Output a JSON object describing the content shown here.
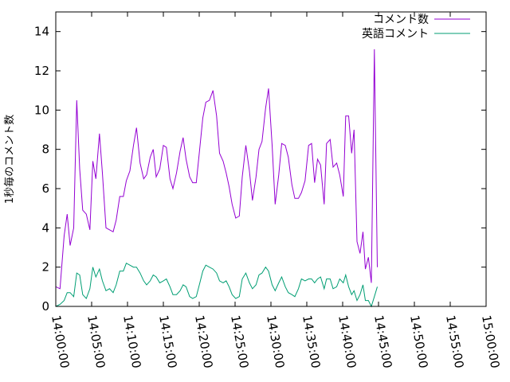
{
  "chart_data": {
    "type": "line",
    "title": "",
    "xlabel": "",
    "ylabel": "1秒毎のコメント数",
    "xlim": [
      "14:00:00",
      "15:00:00"
    ],
    "ylim": [
      0,
      15
    ],
    "x_ticks": [
      "14:00:00",
      "14:05:00",
      "14:10:00",
      "14:15:00",
      "14:20:00",
      "14:25:00",
      "14:30:00",
      "14:35:00",
      "14:40:00",
      "14:45:00",
      "14:50:00",
      "14:55:00",
      "15:00:00"
    ],
    "y_ticks": [
      "0",
      "2",
      "4",
      "6",
      "8",
      "10",
      "12",
      "14"
    ],
    "grid": false,
    "legend_position": "top-right",
    "series": [
      {
        "name": "コメント数",
        "color": "#9400d3",
        "points": [
          [
            "14:00:00",
            1.0
          ],
          [
            "14:00:35",
            0.9
          ],
          [
            "14:01:10",
            3.6
          ],
          [
            "14:01:35",
            4.7
          ],
          [
            "14:02:00",
            3.1
          ],
          [
            "14:02:30",
            4.0
          ],
          [
            "14:02:55",
            10.5
          ],
          [
            "14:03:20",
            7.0
          ],
          [
            "14:03:45",
            4.9
          ],
          [
            "14:04:15",
            4.7
          ],
          [
            "14:04:45",
            3.9
          ],
          [
            "14:05:10",
            7.4
          ],
          [
            "14:05:35",
            6.5
          ],
          [
            "14:06:05",
            8.8
          ],
          [
            "14:06:30",
            6.8
          ],
          [
            "14:07:00",
            4.0
          ],
          [
            "14:07:30",
            3.9
          ],
          [
            "14:08:00",
            3.8
          ],
          [
            "14:08:25",
            4.4
          ],
          [
            "14:08:55",
            5.6
          ],
          [
            "14:09:25",
            5.6
          ],
          [
            "14:09:50",
            6.4
          ],
          [
            "14:10:20",
            6.9
          ],
          [
            "14:10:50",
            8.2
          ],
          [
            "14:11:15",
            9.1
          ],
          [
            "14:11:45",
            7.3
          ],
          [
            "14:12:15",
            6.5
          ],
          [
            "14:12:40",
            6.7
          ],
          [
            "14:13:10",
            7.6
          ],
          [
            "14:13:35",
            8.0
          ],
          [
            "14:14:00",
            6.6
          ],
          [
            "14:14:30",
            7.0
          ],
          [
            "14:15:00",
            8.2
          ],
          [
            "14:15:25",
            8.1
          ],
          [
            "14:15:55",
            6.5
          ],
          [
            "14:16:20",
            6.0
          ],
          [
            "14:16:50",
            6.8
          ],
          [
            "14:17:20",
            7.9
          ],
          [
            "14:17:45",
            8.6
          ],
          [
            "14:18:10",
            7.5
          ],
          [
            "14:18:40",
            6.6
          ],
          [
            "14:19:05",
            6.3
          ],
          [
            "14:19:35",
            6.3
          ],
          [
            "14:20:05",
            8.1
          ],
          [
            "14:20:30",
            9.6
          ],
          [
            "14:20:55",
            10.4
          ],
          [
            "14:21:25",
            10.5
          ],
          [
            "14:21:55",
            11.0
          ],
          [
            "14:22:25",
            9.7
          ],
          [
            "14:22:50",
            7.8
          ],
          [
            "14:23:20",
            7.4
          ],
          [
            "14:23:45",
            6.8
          ],
          [
            "14:24:10",
            6.1
          ],
          [
            "14:24:35",
            5.2
          ],
          [
            "14:25:05",
            4.5
          ],
          [
            "14:25:35",
            4.6
          ],
          [
            "14:26:00",
            6.6
          ],
          [
            "14:26:30",
            8.2
          ],
          [
            "14:27:00",
            6.9
          ],
          [
            "14:27:25",
            5.4
          ],
          [
            "14:27:55",
            6.6
          ],
          [
            "14:28:20",
            8.0
          ],
          [
            "14:28:45",
            8.4
          ],
          [
            "14:29:15",
            10.1
          ],
          [
            "14:29:40",
            11.1
          ],
          [
            "14:30:10",
            8.2
          ],
          [
            "14:30:35",
            5.2
          ],
          [
            "14:31:05",
            6.7
          ],
          [
            "14:31:30",
            8.3
          ],
          [
            "14:32:00",
            8.2
          ],
          [
            "14:32:25",
            7.6
          ],
          [
            "14:32:55",
            6.2
          ],
          [
            "14:33:20",
            5.5
          ],
          [
            "14:33:50",
            5.5
          ],
          [
            "14:34:15",
            5.8
          ],
          [
            "14:34:45",
            6.4
          ],
          [
            "14:35:15",
            8.2
          ],
          [
            "14:35:40",
            8.3
          ],
          [
            "14:36:05",
            6.3
          ],
          [
            "14:36:30",
            7.5
          ],
          [
            "14:36:55",
            7.2
          ],
          [
            "14:37:25",
            5.2
          ],
          [
            "14:37:45",
            8.3
          ],
          [
            "14:38:15",
            8.5
          ],
          [
            "14:38:40",
            7.1
          ],
          [
            "14:39:10",
            7.3
          ],
          [
            "14:39:35",
            6.7
          ],
          [
            "14:40:05",
            5.6
          ],
          [
            "14:40:25",
            9.7
          ],
          [
            "14:40:50",
            9.7
          ],
          [
            "14:41:15",
            7.8
          ],
          [
            "14:41:35",
            9.0
          ],
          [
            "14:42:00",
            3.3
          ],
          [
            "14:42:25",
            2.7
          ],
          [
            "14:42:50",
            3.8
          ],
          [
            "14:43:10",
            1.9
          ],
          [
            "14:43:35",
            2.5
          ],
          [
            "14:44:00",
            1.2
          ],
          [
            "14:44:25",
            13.1
          ],
          [
            "14:44:50",
            2.0
          ]
        ]
      },
      {
        "name": "英語コメント",
        "color": "#009e73",
        "points": [
          [
            "14:00:00",
            0.0
          ],
          [
            "14:00:35",
            0.1
          ],
          [
            "14:01:10",
            0.3
          ],
          [
            "14:01:35",
            0.7
          ],
          [
            "14:02:00",
            0.7
          ],
          [
            "14:02:30",
            0.5
          ],
          [
            "14:02:55",
            1.7
          ],
          [
            "14:03:20",
            1.6
          ],
          [
            "14:03:45",
            0.6
          ],
          [
            "14:04:15",
            0.4
          ],
          [
            "14:04:45",
            0.9
          ],
          [
            "14:05:10",
            2.0
          ],
          [
            "14:05:35",
            1.5
          ],
          [
            "14:06:05",
            1.9
          ],
          [
            "14:06:30",
            1.3
          ],
          [
            "14:07:00",
            0.8
          ],
          [
            "14:07:30",
            0.9
          ],
          [
            "14:08:00",
            0.7
          ],
          [
            "14:08:25",
            1.1
          ],
          [
            "14:08:55",
            1.8
          ],
          [
            "14:09:25",
            1.8
          ],
          [
            "14:09:50",
            2.2
          ],
          [
            "14:10:20",
            2.1
          ],
          [
            "14:10:50",
            2.0
          ],
          [
            "14:11:15",
            2.0
          ],
          [
            "14:11:45",
            1.7
          ],
          [
            "14:12:15",
            1.3
          ],
          [
            "14:12:40",
            1.1
          ],
          [
            "14:13:10",
            1.3
          ],
          [
            "14:13:35",
            1.6
          ],
          [
            "14:14:00",
            1.5
          ],
          [
            "14:14:30",
            1.2
          ],
          [
            "14:15:00",
            1.3
          ],
          [
            "14:15:25",
            1.4
          ],
          [
            "14:15:55",
            1.0
          ],
          [
            "14:16:20",
            0.6
          ],
          [
            "14:16:50",
            0.6
          ],
          [
            "14:17:20",
            0.8
          ],
          [
            "14:17:45",
            1.1
          ],
          [
            "14:18:10",
            1.0
          ],
          [
            "14:18:40",
            0.5
          ],
          [
            "14:19:05",
            0.4
          ],
          [
            "14:19:35",
            0.5
          ],
          [
            "14:20:05",
            1.2
          ],
          [
            "14:20:30",
            1.8
          ],
          [
            "14:20:55",
            2.1
          ],
          [
            "14:21:25",
            2.0
          ],
          [
            "14:21:55",
            1.9
          ],
          [
            "14:22:25",
            1.7
          ],
          [
            "14:22:50",
            1.3
          ],
          [
            "14:23:20",
            1.2
          ],
          [
            "14:23:45",
            1.3
          ],
          [
            "14:24:10",
            1.0
          ],
          [
            "14:24:35",
            0.6
          ],
          [
            "14:25:05",
            0.4
          ],
          [
            "14:25:35",
            0.5
          ],
          [
            "14:26:00",
            1.4
          ],
          [
            "14:26:30",
            1.7
          ],
          [
            "14:27:00",
            1.2
          ],
          [
            "14:27:25",
            0.9
          ],
          [
            "14:27:55",
            1.1
          ],
          [
            "14:28:20",
            1.6
          ],
          [
            "14:28:45",
            1.7
          ],
          [
            "14:29:15",
            2.0
          ],
          [
            "14:29:40",
            1.8
          ],
          [
            "14:30:10",
            1.1
          ],
          [
            "14:30:35",
            0.8
          ],
          [
            "14:31:05",
            1.2
          ],
          [
            "14:31:30",
            1.5
          ],
          [
            "14:32:00",
            1.0
          ],
          [
            "14:32:25",
            0.7
          ],
          [
            "14:32:55",
            0.6
          ],
          [
            "14:33:20",
            0.5
          ],
          [
            "14:33:50",
            0.9
          ],
          [
            "14:34:15",
            1.4
          ],
          [
            "14:34:45",
            1.3
          ],
          [
            "14:35:15",
            1.4
          ],
          [
            "14:35:40",
            1.4
          ],
          [
            "14:36:05",
            1.2
          ],
          [
            "14:36:30",
            1.4
          ],
          [
            "14:36:55",
            1.5
          ],
          [
            "14:37:25",
            0.9
          ],
          [
            "14:37:45",
            1.4
          ],
          [
            "14:38:15",
            1.4
          ],
          [
            "14:38:40",
            0.9
          ],
          [
            "14:39:10",
            1.0
          ],
          [
            "14:39:35",
            1.4
          ],
          [
            "14:40:05",
            1.2
          ],
          [
            "14:40:25",
            1.6
          ],
          [
            "14:40:50",
            1.0
          ],
          [
            "14:41:15",
            0.6
          ],
          [
            "14:41:35",
            0.8
          ],
          [
            "14:42:00",
            0.3
          ],
          [
            "14:42:25",
            0.6
          ],
          [
            "14:42:50",
            1.1
          ],
          [
            "14:43:10",
            0.3
          ],
          [
            "14:43:35",
            0.3
          ],
          [
            "14:44:00",
            0.0
          ],
          [
            "14:44:25",
            0.5
          ],
          [
            "14:44:50",
            1.0
          ]
        ]
      }
    ]
  }
}
